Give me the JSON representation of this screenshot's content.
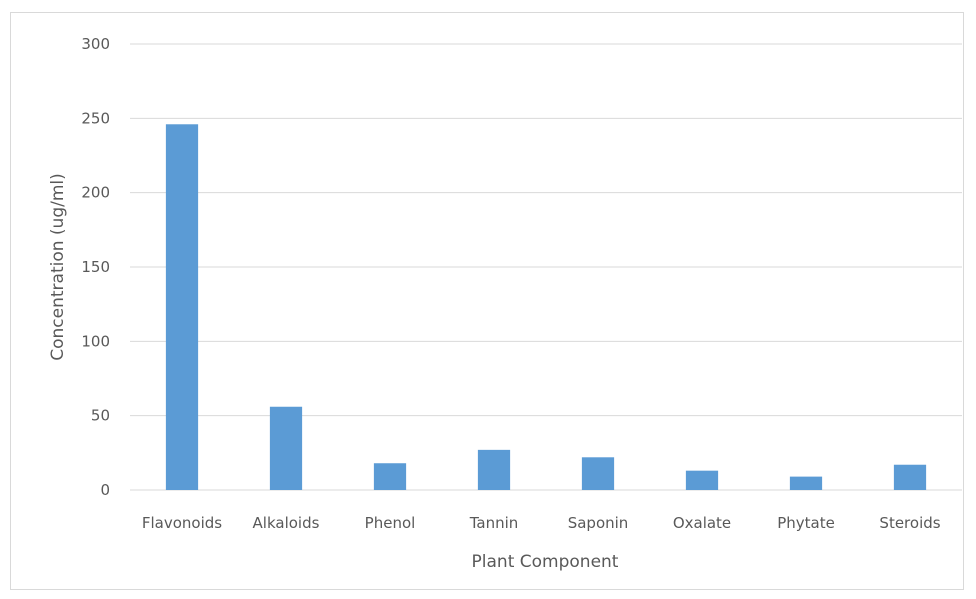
{
  "chart_data": {
    "type": "bar",
    "categories": [
      "Flavonoids",
      "Alkaloids",
      "Phenol",
      "Tannin",
      "Saponin",
      "Oxalate",
      "Phytate",
      "Steroids"
    ],
    "values": [
      246,
      56,
      18,
      27,
      22,
      13,
      9,
      17
    ],
    "title": "",
    "xlabel": "Plant Component",
    "ylabel": "Concentration (ug/ml)",
    "ylim": [
      0,
      300
    ],
    "yticks": [
      "0",
      "50",
      "100",
      "150",
      "200",
      "250",
      "300"
    ],
    "grid": true,
    "legend": "none",
    "bar_color": "#5b9bd5",
    "gridline_color": "#d9d9d9"
  }
}
